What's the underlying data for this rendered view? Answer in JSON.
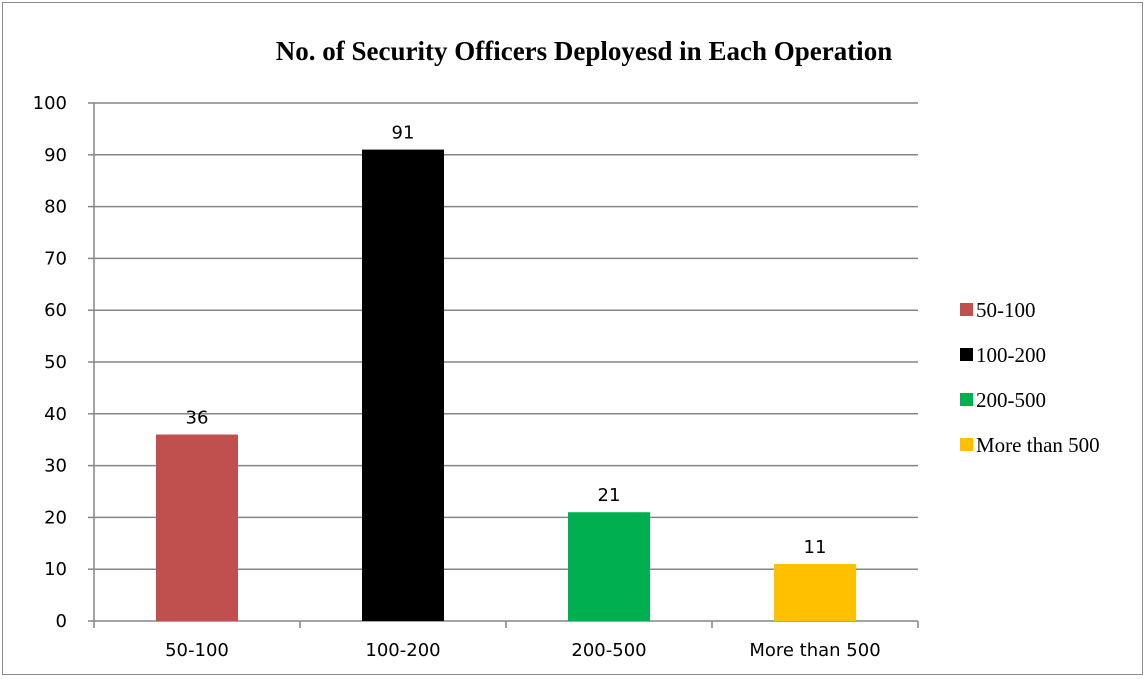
{
  "chart_data": {
    "type": "bar",
    "title": "No. of Security Officers Deployesd in Each Operation",
    "categories": [
      "50-100",
      "100-200",
      "200-500",
      "More than 500"
    ],
    "values": [
      36,
      91,
      21,
      11
    ],
    "colors": [
      "#c0504d",
      "#000000",
      "#00b050",
      "#ffc000"
    ],
    "ylim": [
      0,
      100
    ],
    "yticks": [
      0,
      10,
      20,
      30,
      40,
      50,
      60,
      70,
      80,
      90,
      100
    ],
    "grid": true,
    "legend": {
      "position": "right",
      "entries": [
        "50-100",
        "100-200",
        "200-500",
        "More than 500"
      ]
    }
  }
}
